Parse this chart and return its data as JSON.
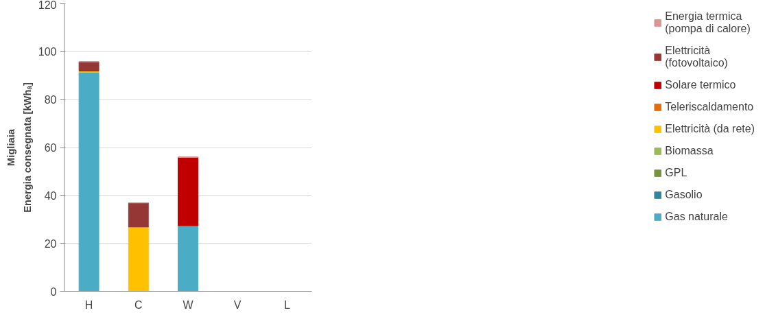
{
  "chart_data": {
    "type": "bar",
    "stacked": true,
    "ylabel": "Energia consegnata [kWhₐ]",
    "annotations": [
      "Migliaia"
    ],
    "categories": [
      "H",
      "C",
      "W",
      "V",
      "L"
    ],
    "ylim": [
      0,
      120
    ],
    "yticks": [
      0,
      20,
      40,
      60,
      80,
      100,
      120
    ],
    "grid": "y",
    "legend": "right",
    "series": [
      {
        "name": "Gas naturale",
        "color": "#4bacc6",
        "values": [
          91.4,
          0,
          27.4,
          0,
          0
        ]
      },
      {
        "name": "Gasolio",
        "color": "#31859c",
        "values": [
          0,
          0,
          0,
          0,
          0
        ]
      },
      {
        "name": "GPL",
        "color": "#77933c",
        "values": [
          0,
          0,
          0,
          0,
          0
        ]
      },
      {
        "name": "Biomassa",
        "color": "#9bbb59",
        "values": [
          0,
          0,
          0,
          0,
          0
        ]
      },
      {
        "name": "Elettricità (da rete)",
        "color": "#ffc000",
        "values": [
          0.6,
          26.9,
          0,
          0,
          0
        ]
      },
      {
        "name": "Teleriscaldamento",
        "color": "#e46c0a",
        "values": [
          0,
          0,
          0,
          0,
          0
        ]
      },
      {
        "name": "Solare termico",
        "color": "#c00000",
        "values": [
          0,
          0,
          28.5,
          0,
          0
        ]
      },
      {
        "name": "Elettricità (fotovoltaico)",
        "color": "#953735",
        "values": [
          3.8,
          10,
          0,
          0,
          0
        ]
      },
      {
        "name": "Energia termica (pompa di calore)",
        "color": "#d99594",
        "values": [
          0,
          0,
          0,
          0,
          0
        ]
      }
    ]
  }
}
